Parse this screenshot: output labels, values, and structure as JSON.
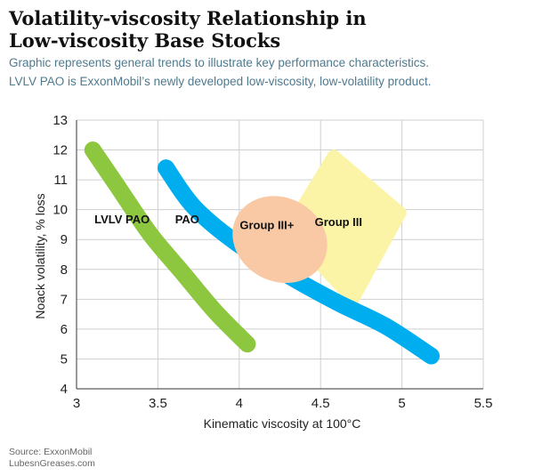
{
  "header": {
    "title_line1": "Volatility-viscosity Relationship in",
    "title_line2": "Low-viscosity Base Stocks",
    "subtitle_line1": "Graphic represents general trends to illustrate key performance characteristics.",
    "subtitle_line2": "LVLV PAO is ExxonMobil’s newly developed low-viscosity, low-volatility product."
  },
  "footer": {
    "source_line1": "Source: ExxonMobil",
    "source_line2": "LubesnGreases.com"
  },
  "chart_data": {
    "type": "line",
    "xlabel": "Kinematic viscosity at 100°C",
    "ylabel": "Noack volatility, % loss",
    "xlim": [
      3,
      5.5
    ],
    "ylim": [
      4,
      13
    ],
    "xticks": [
      "3",
      "3.5",
      "4",
      "4.5",
      "5",
      "5.5"
    ],
    "yticks": [
      "4",
      "5",
      "6",
      "7",
      "8",
      "9",
      "10",
      "11",
      "12",
      "13"
    ],
    "grid": true,
    "series": [
      {
        "name": "LVLV PAO",
        "color": "#8dc63f",
        "shape": "band",
        "points": [
          [
            3.1,
            12.0
          ],
          [
            3.25,
            10.8
          ],
          [
            3.45,
            9.2
          ],
          [
            3.65,
            7.9
          ],
          [
            3.85,
            6.6
          ],
          [
            4.05,
            5.5
          ]
        ]
      },
      {
        "name": "PAO",
        "color": "#00aeef",
        "shape": "band",
        "points": [
          [
            3.55,
            11.4
          ],
          [
            3.72,
            10.1
          ],
          [
            3.98,
            8.9
          ],
          [
            4.3,
            7.8
          ],
          [
            4.6,
            6.9
          ],
          [
            4.9,
            6.1
          ],
          [
            5.18,
            5.1
          ]
        ]
      },
      {
        "name": "Group III+",
        "color": "#f9c9a6",
        "shape": "ellipse",
        "center": [
          4.25,
          9.0
        ],
        "extent": [
          [
            3.95,
            4.55
          ],
          [
            7.6,
            10.4
          ]
        ]
      },
      {
        "name": "Group III",
        "color": "#fbf4a6",
        "shape": "region",
        "points": [
          [
            4.58,
            11.8
          ],
          [
            4.99,
            9.9
          ],
          [
            4.7,
            7.0
          ],
          [
            4.3,
            9.3
          ]
        ]
      }
    ],
    "labels": [
      {
        "text": "LVLV PAO",
        "x": 3.28,
        "y": 9.55
      },
      {
        "text": "PAO",
        "x": 3.68,
        "y": 9.55
      },
      {
        "text": "Group III+",
        "x": 4.17,
        "y": 9.35
      },
      {
        "text": "Group III",
        "x": 4.61,
        "y": 9.45
      }
    ]
  }
}
